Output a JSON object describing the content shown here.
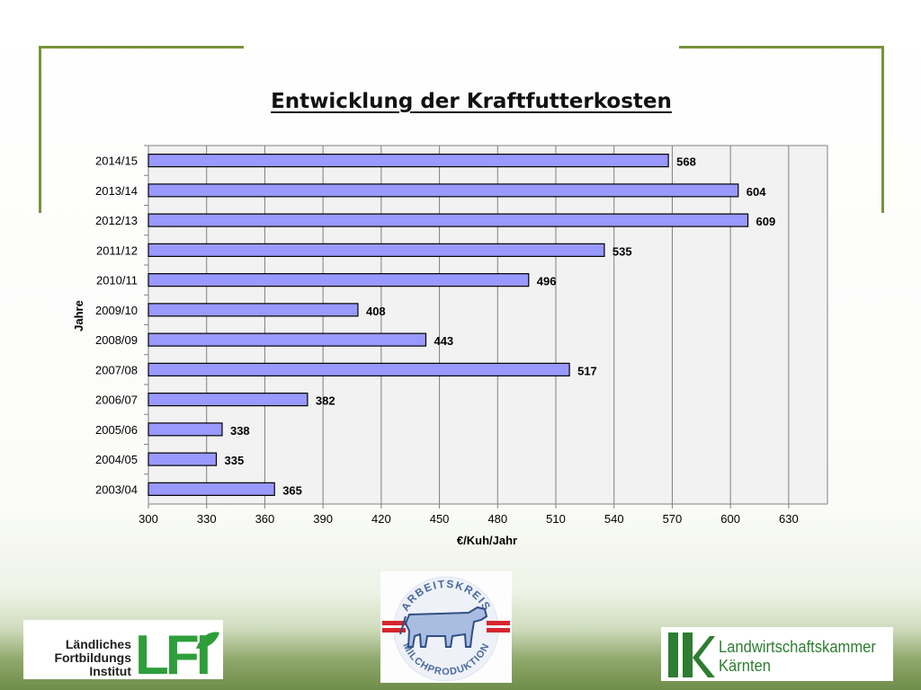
{
  "title": "Entwicklung der Kraftfutterkosten",
  "chart_data": {
    "type": "bar",
    "orientation": "horizontal",
    "categories": [
      "2014/15",
      "2013/14",
      "2012/13",
      "2011/12",
      "2010/11",
      "2009/10",
      "2008/09",
      "2007/08",
      "2006/07",
      "2005/06",
      "2004/05",
      "2003/04"
    ],
    "values": [
      568,
      604,
      609,
      535,
      496,
      408,
      443,
      517,
      382,
      338,
      335,
      365
    ],
    "xlabel": "€/Kuh/Jahr",
    "ylabel": "Jahre",
    "xlim": [
      300,
      650
    ],
    "xticks": [
      300,
      330,
      360,
      390,
      420,
      450,
      480,
      510,
      540,
      570,
      600,
      630
    ],
    "grid": "vertical",
    "bar_color": "#9999ff",
    "bar_border_color": "#000000",
    "plot_background": "#f2f2f2",
    "data_labels": true
  },
  "logos": {
    "lfi": {
      "text": "Ländliches Fortbildungs Institut",
      "mark": "LFI"
    },
    "arbeitskreis": {
      "top_text": "ARBEITSKREIS",
      "bottom_text": "MILCHPRODUKTION",
      "icon": "cow-icon"
    },
    "lk": {
      "mark": "lk",
      "text_line1": "Landwirtschaftskammer",
      "text_line2": "Kärnten"
    }
  },
  "colors": {
    "frame": "#77933c",
    "lfi_green": "#2e9e3a",
    "lk_green": "#2e7d32",
    "ak_blue": "#4a6aa0",
    "ak_red": "#d7262e"
  }
}
